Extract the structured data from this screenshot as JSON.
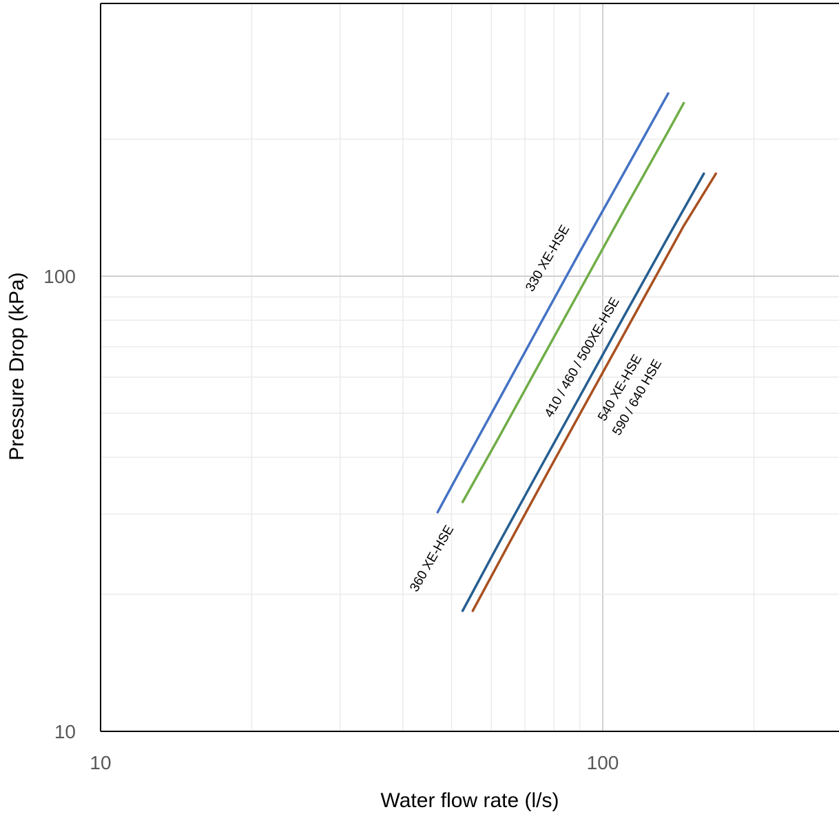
{
  "chart_data": {
    "type": "line",
    "title": "",
    "xlabel": "Water flow rate (l/s)",
    "ylabel": "Pressure Drop (kPa)",
    "xscale": "log",
    "yscale": "log",
    "xlim": [
      10,
      220
    ],
    "ylim": [
      10,
      250
    ],
    "xticks": [
      10,
      100
    ],
    "yticks": [
      10,
      100
    ],
    "xtick_labels": [
      "10",
      "100"
    ],
    "ytick_labels": [
      "10",
      "100"
    ],
    "grid": true,
    "legend": "none",
    "series": [
      {
        "name": "330 XE-HSE",
        "color": "#4472C4",
        "points": [
          [
            46.9,
            30.3
          ],
          [
            52,
            37.4
          ],
          [
            62,
            53.3
          ],
          [
            75,
            78.3
          ],
          [
            90,
            113
          ],
          [
            110,
            168
          ],
          [
            135,
            252
          ]
        ]
      },
      {
        "name": "360 XE-HSE",
        "color": "#70AD47",
        "points": [
          [
            52.6,
            31.9
          ],
          [
            62,
            44.1
          ],
          [
            75,
            64.6
          ],
          [
            90,
            93
          ],
          [
            110,
            139
          ],
          [
            135,
            208
          ],
          [
            145,
            240
          ]
        ]
      },
      {
        "name": "410 / 460 / 500XE-HSE",
        "color": "#255E91",
        "points": [
          [
            52.6,
            18.4
          ],
          [
            62,
            25.8
          ],
          [
            75,
            37.8
          ],
          [
            90,
            54.4
          ],
          [
            110,
            81.3
          ],
          [
            135,
            122
          ],
          [
            159,
            168
          ]
        ]
      },
      {
        "name": "540 XE-HSE",
        "color": "#A9501F",
        "points": [
          [
            55.1,
            18.4
          ],
          [
            65,
            25.8
          ],
          [
            80,
            39.3
          ],
          [
            100,
            61.4
          ],
          [
            120,
            88.4
          ],
          [
            145,
            129
          ],
          [
            168,
            168
          ]
        ]
      }
    ],
    "annotations": [
      "330 XE-HSE",
      "360 XE-HSE",
      "410 / 460 / 500XE-HSE",
      "540 XE-HSE",
      "590 / 640 HSE"
    ]
  }
}
